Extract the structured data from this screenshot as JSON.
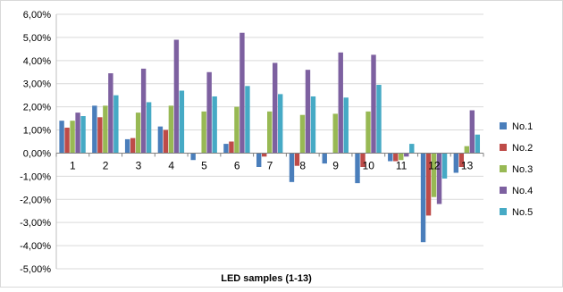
{
  "chart_data": {
    "type": "bar",
    "xlabel": "LED samples (1-13)",
    "ylabel": "",
    "categories": [
      "1",
      "2",
      "3",
      "4",
      "5",
      "6",
      "7",
      "8",
      "9",
      "10",
      "11",
      "12",
      "13"
    ],
    "y_ticks": [
      "6,00%",
      "5,00%",
      "4,00%",
      "3,00%",
      "2,00%",
      "1,00%",
      "0,00%",
      "-1,00%",
      "-2,00%",
      "-3,00%",
      "-4,00%",
      "-5,00%"
    ],
    "ylim": [
      -5,
      6
    ],
    "grid": true,
    "legend_position": "right",
    "series": [
      {
        "name": "No.1",
        "color": "#4a7ebb",
        "values": [
          1.4,
          2.05,
          0.6,
          1.15,
          -0.3,
          0.4,
          -0.6,
          -1.25,
          -0.45,
          -1.3,
          -0.35,
          -3.85,
          -0.85
        ]
      },
      {
        "name": "No.2",
        "color": "#be4b48",
        "values": [
          1.1,
          1.55,
          0.65,
          1.0,
          0.0,
          0.5,
          -0.15,
          -0.55,
          0.0,
          -0.6,
          -0.35,
          -2.7,
          -0.6
        ]
      },
      {
        "name": "No.3",
        "color": "#98b954",
        "values": [
          1.4,
          2.05,
          1.75,
          2.05,
          1.8,
          2.0,
          1.8,
          1.65,
          1.7,
          1.8,
          -0.3,
          -1.9,
          0.3
        ]
      },
      {
        "name": "No.4",
        "color": "#7d60a0",
        "values": [
          1.75,
          3.45,
          3.65,
          4.9,
          3.5,
          5.2,
          3.9,
          3.6,
          4.35,
          4.25,
          -0.15,
          -2.2,
          1.85
        ]
      },
      {
        "name": "No.5",
        "color": "#46aac5",
        "values": [
          1.6,
          2.5,
          2.2,
          2.7,
          2.45,
          2.9,
          2.55,
          2.45,
          2.4,
          2.95,
          0.4,
          -1.1,
          0.8
        ]
      }
    ]
  }
}
